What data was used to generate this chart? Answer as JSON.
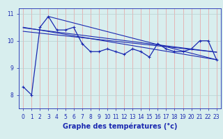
{
  "xlabel": "Graphe des températures (°c)",
  "x": [
    0,
    1,
    2,
    3,
    4,
    5,
    6,
    7,
    8,
    9,
    10,
    11,
    12,
    13,
    14,
    15,
    16,
    17,
    18,
    19,
    20,
    21,
    22,
    23
  ],
  "temp_data": [
    8.3,
    8.0,
    10.5,
    10.9,
    10.4,
    10.4,
    10.5,
    9.9,
    9.6,
    9.6,
    9.7,
    9.6,
    9.5,
    9.7,
    9.6,
    9.4,
    9.9,
    9.7,
    9.6,
    9.6,
    9.7,
    10.0,
    10.0,
    9.3
  ],
  "trend_lines": [
    [
      [
        0,
        23
      ],
      [
        10.5,
        9.3
      ]
    ],
    [
      [
        0,
        23
      ],
      [
        10.35,
        9.58
      ]
    ],
    [
      [
        3,
        23
      ],
      [
        10.9,
        9.3
      ]
    ],
    [
      [
        0,
        23
      ],
      [
        10.48,
        9.58
      ]
    ]
  ],
  "ylim": [
    7.5,
    11.2
  ],
  "xlim": [
    -0.5,
    23.5
  ],
  "bg_color": "#d8eeee",
  "line_color": "#1a28b0",
  "grid_color_v": "#e8a0a0",
  "grid_color_h": "#b8d0d0",
  "tick_label_color": "#1a28b0",
  "xlabel_color": "#1a28b0",
  "yticks": [
    8,
    9,
    10,
    11
  ],
  "xticks": [
    0,
    1,
    2,
    3,
    4,
    5,
    6,
    7,
    8,
    9,
    10,
    11,
    12,
    13,
    14,
    15,
    16,
    17,
    18,
    19,
    20,
    21,
    22,
    23
  ],
  "xlabel_fontsize": 7,
  "tick_fontsize": 5.5
}
